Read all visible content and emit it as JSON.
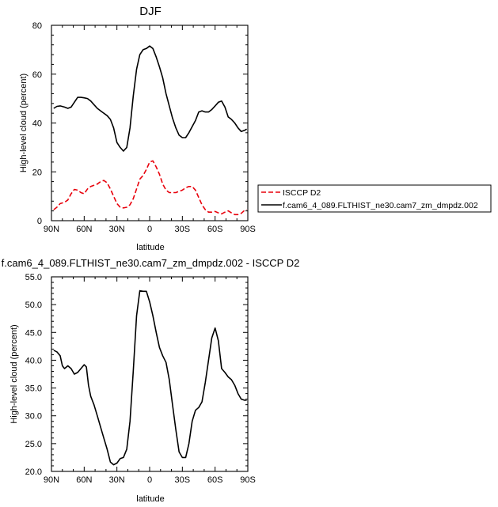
{
  "chart_data": [
    {
      "type": "line",
      "title": "DJF",
      "xlabel": "latitude",
      "ylabel": "High-level cloud (percent)",
      "xlim": [
        90,
        -90
      ],
      "ylim": [
        0,
        80
      ],
      "x_ticks": [
        90,
        60,
        30,
        0,
        -30,
        -60,
        -90
      ],
      "x_tick_labels": [
        "90N",
        "60N",
        "30N",
        "0",
        "30S",
        "60S",
        "90S"
      ],
      "y_ticks": [
        0,
        20,
        40,
        60,
        80
      ],
      "y_tick_labels": [
        "0",
        "20",
        "40",
        "60",
        "80"
      ],
      "legend": {
        "placement": "right",
        "entries": [
          {
            "label": "ISCCP D2",
            "color": "#e8000b",
            "dash": "dashed"
          },
          {
            "label": "f.cam6_4_089.FLTHIST_ne30.cam7_zm_dmpdz.002",
            "color": "#000000",
            "dash": "solid"
          }
        ]
      },
      "series": [
        {
          "name": "ISCCP D2",
          "color": "#e8000b",
          "dash": "dashed",
          "x": [
            88,
            85,
            82,
            78,
            75,
            72,
            69,
            66,
            63,
            60,
            57,
            54,
            51,
            48,
            45,
            42,
            39,
            36,
            33,
            30,
            27,
            24,
            21,
            18,
            15,
            12,
            9,
            6,
            3,
            0,
            -3,
            -6,
            -9,
            -12,
            -15,
            -18,
            -21,
            -24,
            -27,
            -30,
            -33,
            -36,
            -39,
            -42,
            -45,
            -48,
            -51,
            -54,
            -57,
            -60,
            -63,
            -66,
            -69,
            -72,
            -75,
            -78,
            -81,
            -84,
            -87,
            -89
          ],
          "y": [
            4.5,
            5.5,
            7,
            7.5,
            8.5,
            11,
            12.8,
            12.5,
            11.5,
            11,
            13,
            14,
            14.5,
            15,
            16,
            16.5,
            15.5,
            13,
            10,
            7,
            5.5,
            5.2,
            5.5,
            6.5,
            9,
            13,
            17,
            18.5,
            21,
            24,
            24.5,
            22,
            19,
            15,
            12.5,
            11.5,
            11.5,
            11.5,
            12,
            12.5,
            13.5,
            14,
            14,
            12.5,
            9.5,
            6.5,
            4.5,
            3.5,
            3.5,
            3.8,
            3.2,
            2.8,
            3.5,
            4,
            3.2,
            2.5,
            2.5,
            3,
            4.2,
            4.5
          ]
        },
        {
          "name": "f.cam6_4_089.FLTHIST_ne30.cam7_zm_dmpdz.002",
          "color": "#000000",
          "dash": "solid",
          "x": [
            88,
            85,
            82,
            78,
            75,
            72,
            69,
            66,
            63,
            60,
            57,
            54,
            51,
            48,
            45,
            42,
            39,
            36,
            33,
            30,
            27,
            24,
            21,
            18,
            15,
            12,
            9,
            6,
            3,
            0,
            -3,
            -6,
            -9,
            -12,
            -15,
            -18,
            -21,
            -24,
            -27,
            -30,
            -33,
            -36,
            -39,
            -42,
            -45,
            -48,
            -51,
            -54,
            -57,
            -60,
            -63,
            -66,
            -69,
            -72,
            -75,
            -78,
            -81,
            -84,
            -87,
            -89
          ],
          "y": [
            46,
            46.8,
            47,
            46.5,
            46,
            46.5,
            48.5,
            50.5,
            50.5,
            50.3,
            50,
            49,
            47.5,
            46,
            45,
            44,
            43,
            41.5,
            38,
            32,
            30,
            28.5,
            30,
            38,
            51,
            62,
            68,
            70,
            70.5,
            71.5,
            70.5,
            67,
            63,
            58.5,
            52,
            47,
            42,
            38,
            35,
            34,
            34,
            36,
            38.5,
            41,
            44.5,
            45,
            44.5,
            44.5,
            45.5,
            47,
            48.5,
            49,
            46.5,
            42.5,
            41.5,
            40,
            38,
            36.5,
            37,
            37.5
          ]
        }
      ]
    },
    {
      "type": "line",
      "title": "f.cam6_4_089.FLTHIST_ne30.cam7_zm_dmpdz.002 - ISCCP D2",
      "xlabel": "latitude",
      "ylabel": "High-level cloud (percent)",
      "xlim": [
        90,
        -90
      ],
      "ylim": [
        20,
        55
      ],
      "x_ticks": [
        90,
        60,
        30,
        0,
        -30,
        -60,
        -90
      ],
      "x_tick_labels": [
        "90N",
        "60N",
        "30N",
        "0",
        "30S",
        "60S",
        "90S"
      ],
      "y_ticks": [
        20,
        25,
        30,
        35,
        40,
        45,
        50,
        55
      ],
      "y_tick_labels": [
        "20.0",
        "25.0",
        "30.0",
        "35.0",
        "40.0",
        "45.0",
        "50.0",
        "55.0"
      ],
      "series": [
        {
          "color": "#000000",
          "dash": "solid",
          "x": [
            88,
            85,
            82,
            80,
            78,
            75,
            72,
            69,
            66,
            63,
            60,
            58,
            56,
            54,
            51,
            48,
            45,
            42,
            39,
            36,
            33,
            30,
            27,
            24,
            21,
            18,
            15,
            12,
            9,
            6,
            3,
            0,
            -3,
            -6,
            -9,
            -12,
            -15,
            -18,
            -21,
            -24,
            -27,
            -30,
            -33,
            -36,
            -39,
            -42,
            -45,
            -48,
            -51,
            -54,
            -57,
            -60,
            -63,
            -66,
            -69,
            -72,
            -75,
            -78,
            -81,
            -84,
            -87,
            -89
          ],
          "y": [
            41.8,
            41.5,
            40.8,
            39,
            38.5,
            39,
            38.5,
            37.5,
            37.8,
            38.5,
            39.2,
            38.8,
            35.5,
            33.5,
            32,
            30,
            28,
            26,
            24,
            21.7,
            21.2,
            21.5,
            22.3,
            22.5,
            24,
            29,
            38,
            48,
            52.5,
            52.4,
            52.4,
            50.5,
            48,
            45,
            42.3,
            40.8,
            39.6,
            36.5,
            32,
            27.5,
            23.5,
            22.5,
            22.5,
            25,
            29,
            31,
            31.5,
            32.5,
            36,
            40,
            44,
            45.8,
            43.5,
            38.5,
            37.8,
            37,
            36.5,
            35.5,
            34,
            33,
            32.8,
            32.8
          ]
        }
      ]
    }
  ]
}
